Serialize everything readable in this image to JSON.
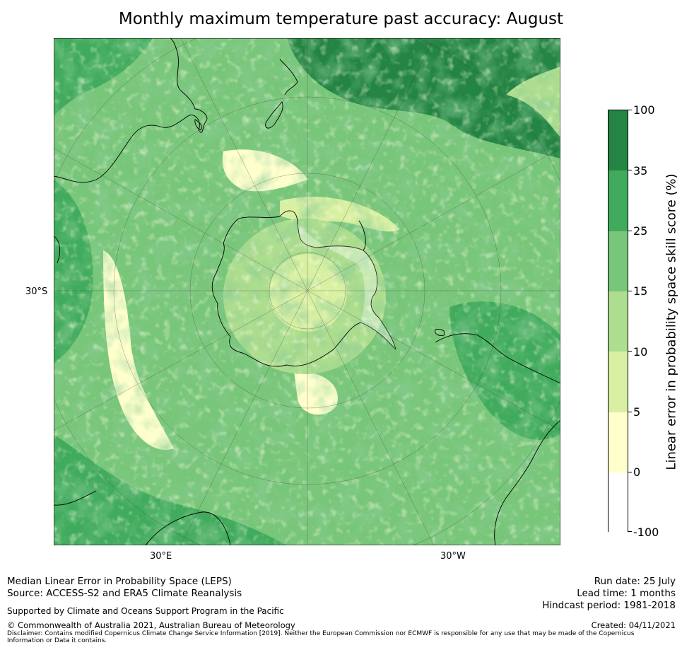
{
  "title": "Monthly maximum temperature past accuracy: August",
  "map": {
    "projection": "south-polar-stereographic",
    "lat_label": "30°S",
    "lon_labels": {
      "east": "30°E",
      "west": "30°W"
    },
    "field_colors": {
      "very_low": "#ffffcc",
      "low": "#d9f0a3",
      "medium": "#addd8e",
      "medium_high": "#78c679",
      "high": "#41ab5d",
      "very_high": "#238443"
    },
    "coastline_color": "#000000",
    "grid_color": "#3a3a3a"
  },
  "colorbar": {
    "title": "Linear error in probability space skill score (%)",
    "ticks": [
      "100",
      "35",
      "25",
      "15",
      "10",
      "5",
      "0",
      "-100"
    ],
    "segments": [
      {
        "range": "35–100",
        "color": "#238443"
      },
      {
        "range": "25–35",
        "color": "#41ab5d"
      },
      {
        "range": "15–25",
        "color": "#78c679"
      },
      {
        "range": "10–15",
        "color": "#addd8e"
      },
      {
        "range": "5–10",
        "color": "#d9f0a3"
      },
      {
        "range": "0–5",
        "color": "#ffffcc"
      },
      {
        "range": "-100–0",
        "color": "#ffffff"
      }
    ]
  },
  "footer": {
    "left_line1": "Median Linear Error in Probability Space (LEPS)",
    "left_line2": "Source: ACCESS-S2 and ERA5 Climate Reanalysis",
    "run_date": "Run date: 25 July",
    "lead_time": "Lead time: 1 months",
    "hindcast": "Hindcast period: 1981-2018",
    "supported": "Supported by Climate and Oceans Support Program in the Pacific",
    "copyright": "© Commonwealth of Australia 2021, Australian Bureau of Meteorology",
    "created": "Created: 04/11/2021",
    "disclaimer": "Disclaimer: Contains modified Copernicus Climate Change Service Information [2019]. Neither the European Commission nor ECMWF is responsible for any use that may be made of the Copernicus Information or Data it contains."
  }
}
